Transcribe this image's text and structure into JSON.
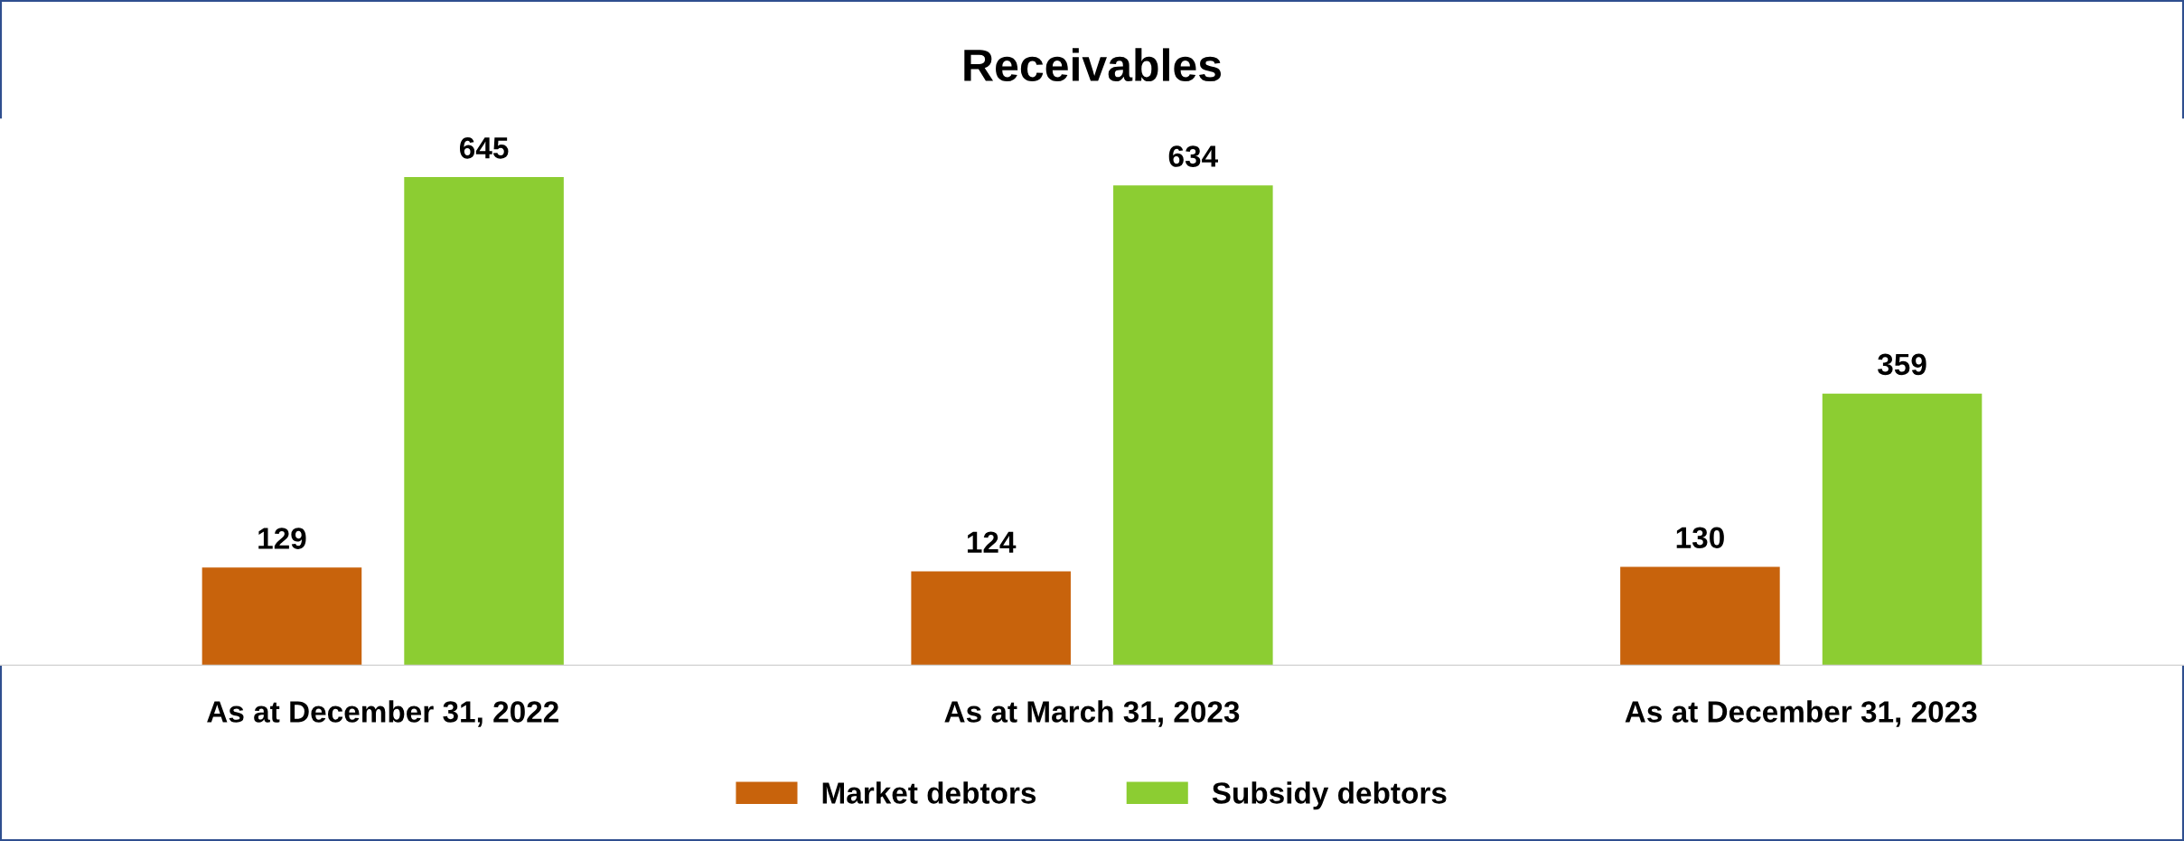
{
  "chart_data": {
    "type": "bar",
    "title": "Receivables",
    "categories": [
      "As at December 31, 2022",
      "As at March 31, 2023",
      "As at December 31, 2023"
    ],
    "series": [
      {
        "name": "Market debtors",
        "color": "#c8630c",
        "values": [
          129,
          124,
          130
        ]
      },
      {
        "name": "Subsidy debtors",
        "color": "#8ccd32",
        "values": [
          645,
          634,
          359
        ]
      }
    ],
    "data_labels": true,
    "legend": "bottom",
    "grid": false,
    "tick_labels": "x"
  }
}
